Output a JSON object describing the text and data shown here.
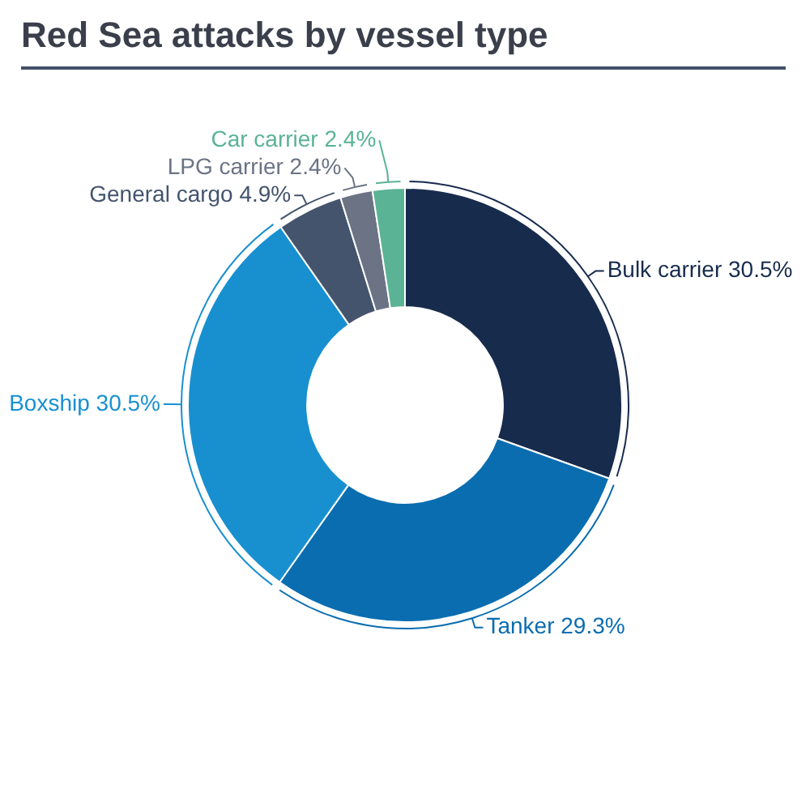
{
  "chart_data": {
    "type": "donut",
    "title": "Red Sea attacks by vessel type",
    "categories": [
      "Bulk carrier",
      "Tanker",
      "Boxship",
      "General cargo",
      "LPG carrier",
      "Car carrier"
    ],
    "values": [
      30.5,
      29.3,
      30.5,
      4.9,
      2.4,
      2.4
    ],
    "value_labels": [
      "30.5%",
      "29.3%",
      "30.5%",
      "4.9%",
      "2.4%",
      "2.4%"
    ],
    "colors": [
      "#172b4d",
      "#0a6db0",
      "#1890d0",
      "#44546d",
      "#6b7385",
      "#5ab394"
    ]
  }
}
